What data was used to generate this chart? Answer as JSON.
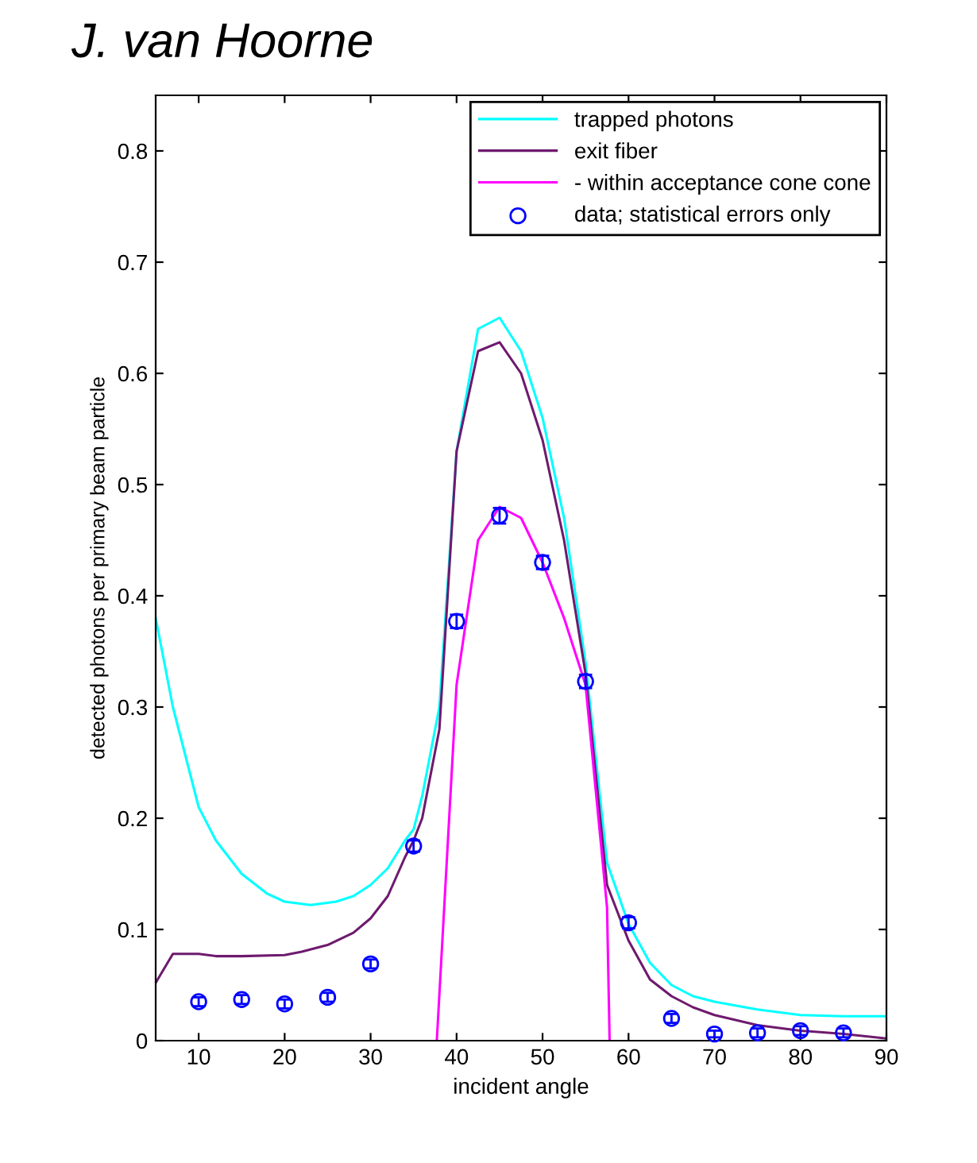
{
  "chart_data": {
    "type": "line",
    "title": "J. van Hoorne",
    "xlabel": "incident angle",
    "ylabel": "detected photons per primary beam particle",
    "xlim": [
      5,
      90
    ],
    "ylim": [
      0,
      0.85
    ],
    "xticks": [
      10,
      20,
      30,
      40,
      50,
      60,
      70,
      80,
      90
    ],
    "yticks": [
      0,
      0.1,
      0.2,
      0.3,
      0.4,
      0.5,
      0.6,
      0.7,
      0.8
    ],
    "grid": false,
    "legend": "top right",
    "series": [
      {
        "name": "trapped photons",
        "color": "#00ffff",
        "marker": "none",
        "x": [
          5,
          7,
          10,
          12,
          15,
          18,
          20,
          23,
          26,
          28,
          30,
          32,
          34,
          35,
          36,
          38,
          40,
          42.5,
          45,
          47.5,
          50,
          52.5,
          55,
          57.5,
          60,
          62.5,
          65,
          67.5,
          70,
          75,
          80,
          85,
          90
        ],
        "values": [
          0.38,
          0.3,
          0.21,
          0.18,
          0.15,
          0.132,
          0.125,
          0.122,
          0.125,
          0.13,
          0.14,
          0.155,
          0.18,
          0.19,
          0.22,
          0.3,
          0.53,
          0.64,
          0.65,
          0.62,
          0.56,
          0.47,
          0.34,
          0.16,
          0.105,
          0.07,
          0.05,
          0.04,
          0.035,
          0.028,
          0.023,
          0.022,
          0.022
        ]
      },
      {
        "name": "exit fiber",
        "color": "#6e1a6e",
        "marker": "none",
        "x": [
          5,
          7,
          10,
          12,
          15,
          20,
          22,
          25,
          28,
          30,
          32,
          34,
          35,
          36,
          38,
          40,
          42.5,
          45,
          47.5,
          50,
          52.5,
          55,
          57.5,
          60,
          62.5,
          65,
          67.5,
          70,
          75,
          80,
          85,
          90
        ],
        "values": [
          0.052,
          0.078,
          0.078,
          0.076,
          0.076,
          0.077,
          0.08,
          0.086,
          0.097,
          0.11,
          0.13,
          0.165,
          0.18,
          0.2,
          0.28,
          0.53,
          0.62,
          0.628,
          0.6,
          0.54,
          0.45,
          0.33,
          0.14,
          0.09,
          0.055,
          0.04,
          0.03,
          0.023,
          0.014,
          0.009,
          0.006,
          0.002
        ]
      },
      {
        "name": "- within acceptance cone cone",
        "color": "#ff00ff",
        "marker": "none",
        "x": [
          37.7,
          40,
          42.5,
          45,
          47.5,
          50,
          52.5,
          55,
          57.5,
          57.8
        ],
        "values": [
          0,
          0.32,
          0.45,
          0.48,
          0.47,
          0.43,
          0.38,
          0.32,
          0.12,
          0
        ]
      },
      {
        "name": "data; statistical errors only",
        "type": "scatter",
        "color": "#0000ff",
        "marker": "circle",
        "x": [
          10,
          15,
          20,
          25,
          30,
          35,
          40,
          45,
          50,
          55,
          60,
          65,
          70,
          75,
          80,
          85
        ],
        "values": [
          0.035,
          0.037,
          0.033,
          0.039,
          0.069,
          0.175,
          0.377,
          0.472,
          0.43,
          0.323,
          0.106,
          0.02,
          0.006,
          0.007,
          0.009,
          0.007
        ],
        "errors": [
          0.004,
          0.004,
          0.004,
          0.004,
          0.004,
          0.005,
          0.006,
          0.007,
          0.006,
          0.006,
          0.005,
          0.004,
          0.003,
          0.004,
          0.004,
          0.004
        ]
      }
    ]
  }
}
